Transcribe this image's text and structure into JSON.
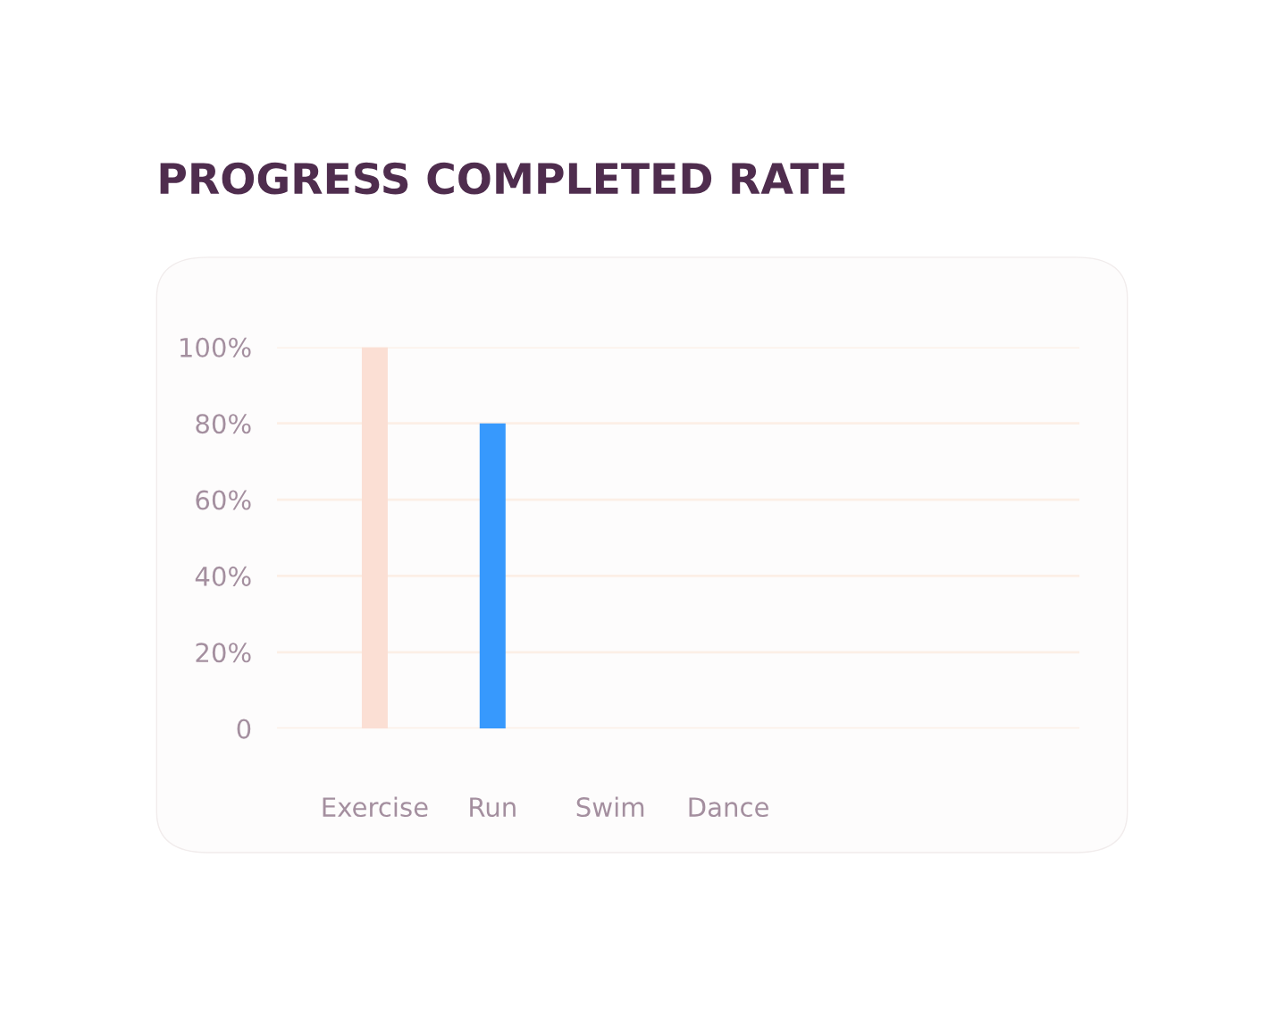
{
  "chart_data": {
    "type": "bar",
    "title": "PROGRESS COMPLETED RATE",
    "categories": [
      "Exercise",
      "Run",
      "Swim",
      "Dance"
    ],
    "values": [
      100,
      80,
      null,
      null
    ],
    "colors": [
      "#fbdfd4",
      "#3799fd",
      "#3799fd",
      "#3799fd"
    ],
    "ylim": [
      0,
      100
    ],
    "yticks": [
      0,
      {
        "value": 20,
        "label": "20%"
      },
      {
        "value": 40,
        "label": "40%"
      },
      {
        "value": 60,
        "label": "60%"
      },
      {
        "value": 80,
        "label": "80%"
      },
      {
        "value": 100,
        "label": "100%"
      }
    ],
    "grid": "y",
    "legend": false
  }
}
